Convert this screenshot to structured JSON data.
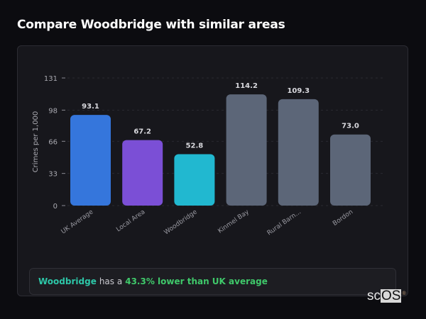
{
  "page": {
    "title": "Compare Woodbridge with similar areas"
  },
  "chart_data": {
    "type": "bar",
    "title": "",
    "xlabel": "",
    "ylabel": "Crimes per 1,000",
    "ylim": [
      0,
      131
    ],
    "yticks": [
      0,
      33,
      66,
      98,
      131
    ],
    "grid": true,
    "legend": null,
    "categories": [
      "UK Average",
      "Local Area",
      "Woodbridge",
      "Kinmel Bay",
      "Rural Barn...",
      "Bordon"
    ],
    "values": [
      93.1,
      67.2,
      52.8,
      114.2,
      109.3,
      73.0
    ],
    "value_labels": [
      "93.1",
      "67.2",
      "52.8",
      "114.2",
      "109.3",
      "73.0"
    ],
    "colors": [
      "#3576dc",
      "#7b4fd6",
      "#21b8d0",
      "#5c6678",
      "#5c6678",
      "#5c6678"
    ]
  },
  "summary": {
    "area": "Woodbridge",
    "connector": "has a",
    "stat": "43.3% lower than UK average"
  },
  "logo": {
    "prefix": "sc",
    "suffix": "OS",
    "mark": "®"
  }
}
